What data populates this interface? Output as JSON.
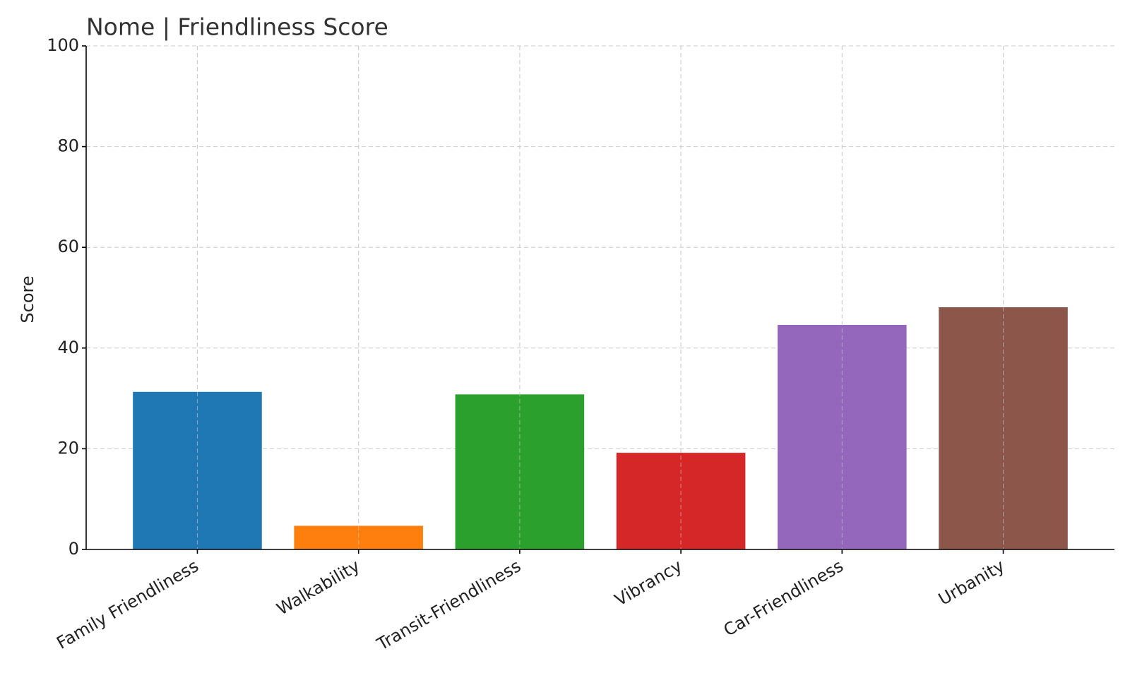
{
  "chart_data": {
    "type": "bar",
    "title": "Nome | Friendliness Score",
    "y_label": "Score",
    "categories": [
      "Family Friendliness",
      "Walkability",
      "Transit-Friendliness",
      "Vibrancy",
      "Car-Friendliness",
      "Urbanity"
    ],
    "values": [
      31.3,
      4.7,
      30.8,
      19.2,
      44.6,
      48.1
    ],
    "colors": [
      "#1f77b4",
      "#ff7f0e",
      "#2ca02c",
      "#d62728",
      "#9467bd",
      "#8c564b"
    ],
    "ylim": [
      0,
      100
    ],
    "yticks": [
      0,
      20,
      40,
      60,
      80,
      100
    ],
    "grid": true
  }
}
